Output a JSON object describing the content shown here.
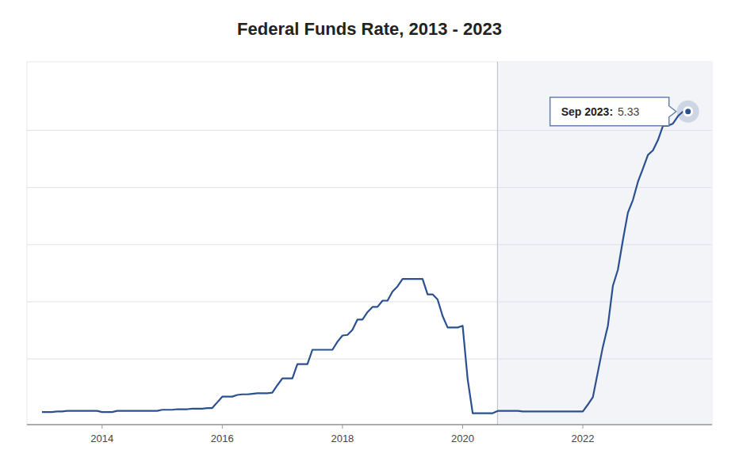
{
  "chart_data": {
    "type": "line",
    "title": "Federal Funds Rate, 2013 - 2023",
    "color": "#2b5090",
    "x": [
      2013.0,
      2013.083,
      2013.167,
      2013.25,
      2013.333,
      2013.417,
      2013.5,
      2013.583,
      2013.667,
      2013.75,
      2013.833,
      2013.917,
      2014.0,
      2014.083,
      2014.167,
      2014.25,
      2014.333,
      2014.417,
      2014.5,
      2014.583,
      2014.667,
      2014.75,
      2014.833,
      2014.917,
      2015.0,
      2015.083,
      2015.167,
      2015.25,
      2015.333,
      2015.417,
      2015.5,
      2015.583,
      2015.667,
      2015.75,
      2015.833,
      2015.917,
      2016.0,
      2016.083,
      2016.167,
      2016.25,
      2016.333,
      2016.417,
      2016.5,
      2016.583,
      2016.667,
      2016.75,
      2016.833,
      2016.917,
      2017.0,
      2017.083,
      2017.167,
      2017.25,
      2017.333,
      2017.417,
      2017.5,
      2017.583,
      2017.667,
      2017.75,
      2017.833,
      2017.917,
      2018.0,
      2018.083,
      2018.167,
      2018.25,
      2018.333,
      2018.417,
      2018.5,
      2018.583,
      2018.667,
      2018.75,
      2018.833,
      2018.917,
      2019.0,
      2019.083,
      2019.167,
      2019.25,
      2019.333,
      2019.417,
      2019.5,
      2019.583,
      2019.667,
      2019.75,
      2019.833,
      2019.917,
      2020.0,
      2020.083,
      2020.167,
      2020.25,
      2020.333,
      2020.417,
      2020.5,
      2020.583,
      2020.667,
      2020.75,
      2020.833,
      2020.917,
      2021.0,
      2021.083,
      2021.167,
      2021.25,
      2021.333,
      2021.417,
      2021.5,
      2021.583,
      2021.667,
      2021.75,
      2021.833,
      2021.917,
      2022.0,
      2022.083,
      2022.167,
      2022.25,
      2022.333,
      2022.417,
      2022.5,
      2022.583,
      2022.667,
      2022.75,
      2022.833,
      2022.917,
      2023.0,
      2023.083,
      2023.167,
      2023.25,
      2023.333,
      2023.417,
      2023.5,
      2023.583,
      2023.667,
      2023.75
    ],
    "values": [
      0.07,
      0.07,
      0.07,
      0.08,
      0.08,
      0.09,
      0.09,
      0.09,
      0.09,
      0.09,
      0.09,
      0.09,
      0.07,
      0.07,
      0.07,
      0.09,
      0.09,
      0.09,
      0.09,
      0.09,
      0.09,
      0.09,
      0.09,
      0.09,
      0.11,
      0.11,
      0.11,
      0.12,
      0.12,
      0.12,
      0.13,
      0.13,
      0.13,
      0.14,
      0.14,
      0.24,
      0.34,
      0.34,
      0.34,
      0.37,
      0.38,
      0.38,
      0.39,
      0.4,
      0.4,
      0.4,
      0.41,
      0.54,
      0.66,
      0.66,
      0.66,
      0.91,
      0.91,
      0.91,
      1.16,
      1.16,
      1.16,
      1.16,
      1.16,
      1.3,
      1.41,
      1.42,
      1.51,
      1.69,
      1.69,
      1.82,
      1.91,
      1.91,
      2.02,
      2.02,
      2.18,
      2.27,
      2.4,
      2.4,
      2.4,
      2.4,
      2.4,
      2.13,
      2.13,
      2.04,
      1.75,
      1.55,
      1.55,
      1.55,
      1.58,
      0.65,
      0.05,
      0.05,
      0.05,
      0.05,
      0.05,
      0.09,
      0.09,
      0.09,
      0.09,
      0.09,
      0.08,
      0.08,
      0.08,
      0.08,
      0.08,
      0.08,
      0.08,
      0.08,
      0.08,
      0.08,
      0.08,
      0.08,
      0.08,
      0.2,
      0.33,
      0.77,
      1.21,
      1.58,
      2.28,
      2.56,
      3.08,
      3.56,
      3.78,
      4.1,
      4.33,
      4.57,
      4.65,
      4.83,
      5.08,
      5.08,
      5.12,
      5.25,
      5.33,
      5.33
    ],
    "xlim": [
      2012.75,
      2024.15
    ],
    "xticks": [
      2014,
      2016,
      2018,
      2020,
      2022
    ],
    "ylim": [
      -0.15,
      6.2
    ],
    "yticks": [
      1,
      2,
      3,
      4,
      5
    ],
    "grid": true,
    "tick_labels": "x",
    "annotations": [
      {
        "type": "vline",
        "x": 2020.58
      },
      {
        "type": "point",
        "x": 2023.75,
        "y": 5.33,
        "text": "Sep 2023:"
      }
    ]
  }
}
